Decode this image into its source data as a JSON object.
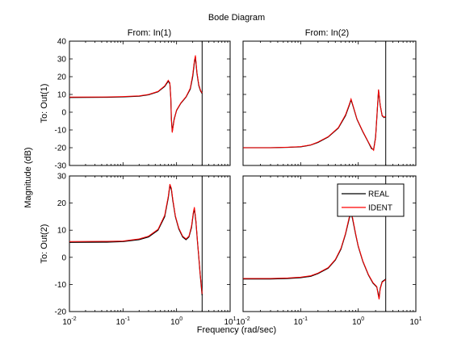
{
  "chart_data": {
    "type": "line",
    "title": "Bode Diagram",
    "xlabel": "Frequency  (rad/sec)",
    "ylabel": "Magnitude (dB)",
    "x_scale": "log",
    "xlim": [
      0.01,
      10
    ],
    "x_tick_labels": [
      {
        "value": 0.01,
        "base": "10",
        "exp": "-2"
      },
      {
        "value": 0.1,
        "base": "10",
        "exp": "-1"
      },
      {
        "value": 1,
        "base": "10",
        "exp": "0"
      },
      {
        "value": 10,
        "base": "10",
        "exp": "1"
      }
    ],
    "grid": false,
    "columns": [
      "From: In(1)",
      "From: In(2)"
    ],
    "rows": [
      "To: Out(1)",
      "To: Out(2)"
    ],
    "legend": {
      "placement": "top-right of lower-right panel",
      "entries": [
        {
          "name": "REAL",
          "color": "#000000"
        },
        {
          "name": "IDENT",
          "color": "#ff0000"
        }
      ]
    },
    "series_colors": {
      "REAL": "#000000",
      "IDENT": "#ff0000"
    },
    "vertical_line_x": 3,
    "panels": [
      {
        "row": 0,
        "col": 0,
        "ylim": [
          -30,
          40
        ],
        "yticks": [
          -30,
          -20,
          -10,
          0,
          10,
          20,
          30,
          40
        ],
        "x": [
          0.01,
          0.05,
          0.1,
          0.2,
          0.3,
          0.45,
          0.6,
          0.7,
          0.75,
          0.78,
          0.8,
          0.83,
          0.9,
          1.0,
          1.2,
          1.5,
          1.8,
          2.0,
          2.15,
          2.25,
          2.4,
          2.6,
          2.8,
          3.0
        ],
        "real": [
          8.3,
          8.4,
          8.6,
          9.0,
          9.8,
          11.5,
          14.5,
          17.5,
          16.0,
          8.0,
          -4.0,
          -11.0,
          -4.0,
          1.0,
          5.0,
          8.5,
          13.0,
          20.0,
          28.0,
          31.0,
          22.0,
          15.0,
          12.0,
          10.5
        ],
        "ident": [
          8.5,
          8.6,
          8.8,
          9.2,
          10.0,
          11.7,
          14.8,
          18.0,
          16.5,
          8.5,
          -3.0,
          -11.5,
          -4.5,
          1.2,
          5.2,
          8.7,
          13.5,
          21.0,
          29.0,
          32.0,
          22.5,
          15.5,
          12.3,
          10.8
        ]
      },
      {
        "row": 0,
        "col": 1,
        "ylim": [
          -30,
          40
        ],
        "yticks": [
          -30,
          -20,
          -10,
          0,
          10,
          20,
          30,
          40
        ],
        "x": [
          0.01,
          0.03,
          0.06,
          0.1,
          0.15,
          0.2,
          0.3,
          0.45,
          0.6,
          0.7,
          0.75,
          0.82,
          0.95,
          1.2,
          1.5,
          1.7,
          1.85,
          2.0,
          2.15,
          2.25,
          2.4,
          2.6,
          2.8,
          3.0
        ],
        "real": [
          -20.0,
          -20.0,
          -19.8,
          -19.5,
          -18.5,
          -17.0,
          -14.0,
          -9.0,
          -2.0,
          4.0,
          7.0,
          3.0,
          -4.0,
          -11.0,
          -17.0,
          -20.5,
          -21.0,
          -14.0,
          2.0,
          12.5,
          4.0,
          -2.0,
          -3.0,
          -2.5
        ],
        "ident": [
          -20.0,
          -20.0,
          -19.7,
          -19.4,
          -18.4,
          -16.8,
          -13.8,
          -8.7,
          -1.5,
          4.5,
          7.5,
          3.3,
          -3.8,
          -10.8,
          -16.8,
          -20.0,
          -21.5,
          -14.5,
          2.5,
          12.8,
          4.2,
          -1.8,
          -2.8,
          -2.3
        ]
      },
      {
        "row": 1,
        "col": 0,
        "ylim": [
          -20,
          30
        ],
        "yticks": [
          -20,
          -10,
          0,
          10,
          20,
          30
        ],
        "x": [
          0.01,
          0.05,
          0.1,
          0.2,
          0.3,
          0.45,
          0.6,
          0.7,
          0.75,
          0.8,
          0.85,
          0.95,
          1.1,
          1.3,
          1.5,
          1.7,
          1.9,
          2.05,
          2.15,
          2.3,
          2.45,
          2.6,
          2.75,
          2.9,
          3.0
        ],
        "real": [
          5.5,
          5.6,
          5.8,
          6.5,
          7.5,
          10.0,
          15.0,
          22.0,
          26.5,
          25.0,
          21.0,
          15.0,
          10.5,
          7.5,
          6.5,
          7.5,
          11.0,
          16.0,
          18.0,
          13.0,
          6.0,
          0.0,
          -6.0,
          -11.0,
          -14.0
        ],
        "ident": [
          5.8,
          5.9,
          6.0,
          6.8,
          7.8,
          10.3,
          15.5,
          22.5,
          27.0,
          25.5,
          21.5,
          15.3,
          10.8,
          7.8,
          6.8,
          7.8,
          11.5,
          16.5,
          18.5,
          13.5,
          6.3,
          0.3,
          -5.8,
          -10.5,
          -13.5
        ]
      },
      {
        "row": 1,
        "col": 1,
        "ylim": [
          -20,
          30
        ],
        "yticks": [
          -20,
          -10,
          0,
          10,
          20,
          30
        ],
        "x": [
          0.01,
          0.03,
          0.06,
          0.1,
          0.15,
          0.2,
          0.3,
          0.4,
          0.5,
          0.6,
          0.7,
          0.75,
          0.8,
          0.9,
          1.0,
          1.2,
          1.5,
          1.8,
          2.0,
          2.1,
          2.2,
          2.3,
          2.4,
          2.6,
          2.8,
          3.0
        ],
        "real": [
          -8.0,
          -8.0,
          -7.8,
          -7.5,
          -7.0,
          -6.0,
          -4.0,
          -1.0,
          3.0,
          8.5,
          14.5,
          16.5,
          14.0,
          8.5,
          4.0,
          -1.5,
          -6.5,
          -9.5,
          -10.5,
          -11.0,
          -13.0,
          -15.0,
          -11.5,
          -9.0,
          -8.5,
          -8.0
        ],
        "ident": [
          -7.8,
          -7.8,
          -7.6,
          -7.3,
          -6.8,
          -5.8,
          -3.8,
          -0.8,
          3.3,
          8.8,
          15.0,
          17.0,
          14.5,
          8.8,
          4.2,
          -1.3,
          -6.3,
          -9.3,
          -10.3,
          -10.8,
          -13.5,
          -15.5,
          -11.8,
          -9.2,
          -8.7,
          -8.2
        ]
      }
    ]
  }
}
